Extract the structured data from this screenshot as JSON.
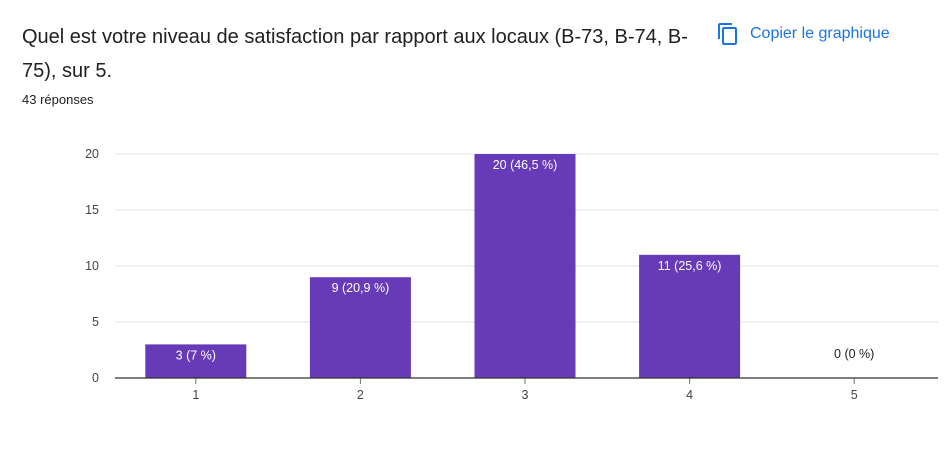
{
  "header": {
    "question": "Quel est votre niveau de satisfaction par rapport aux locaux (B-73, B-74, B-75), sur 5.",
    "responses": "43 réponses",
    "copy_label": "Copier le graphique",
    "copy_icon": "copy-icon"
  },
  "colors": {
    "bar": "#673ab7",
    "accent": "#1a73e8",
    "label_inside": "#ffffff",
    "label_outside": "#202124"
  },
  "chart_data": {
    "type": "bar",
    "categories": [
      "1",
      "2",
      "3",
      "4",
      "5"
    ],
    "values": [
      3,
      9,
      20,
      11,
      0
    ],
    "data_labels": [
      "3 (7 %)",
      "9 (20,9 %)",
      "20 (46,5 %)",
      "11 (25,6 %)",
      "0 (0 %)"
    ],
    "title": "",
    "xlabel": "",
    "ylabel": "",
    "ylim": [
      0,
      20
    ],
    "yticks": [
      0,
      5,
      10,
      15,
      20
    ],
    "grid": true,
    "legend": "none"
  }
}
